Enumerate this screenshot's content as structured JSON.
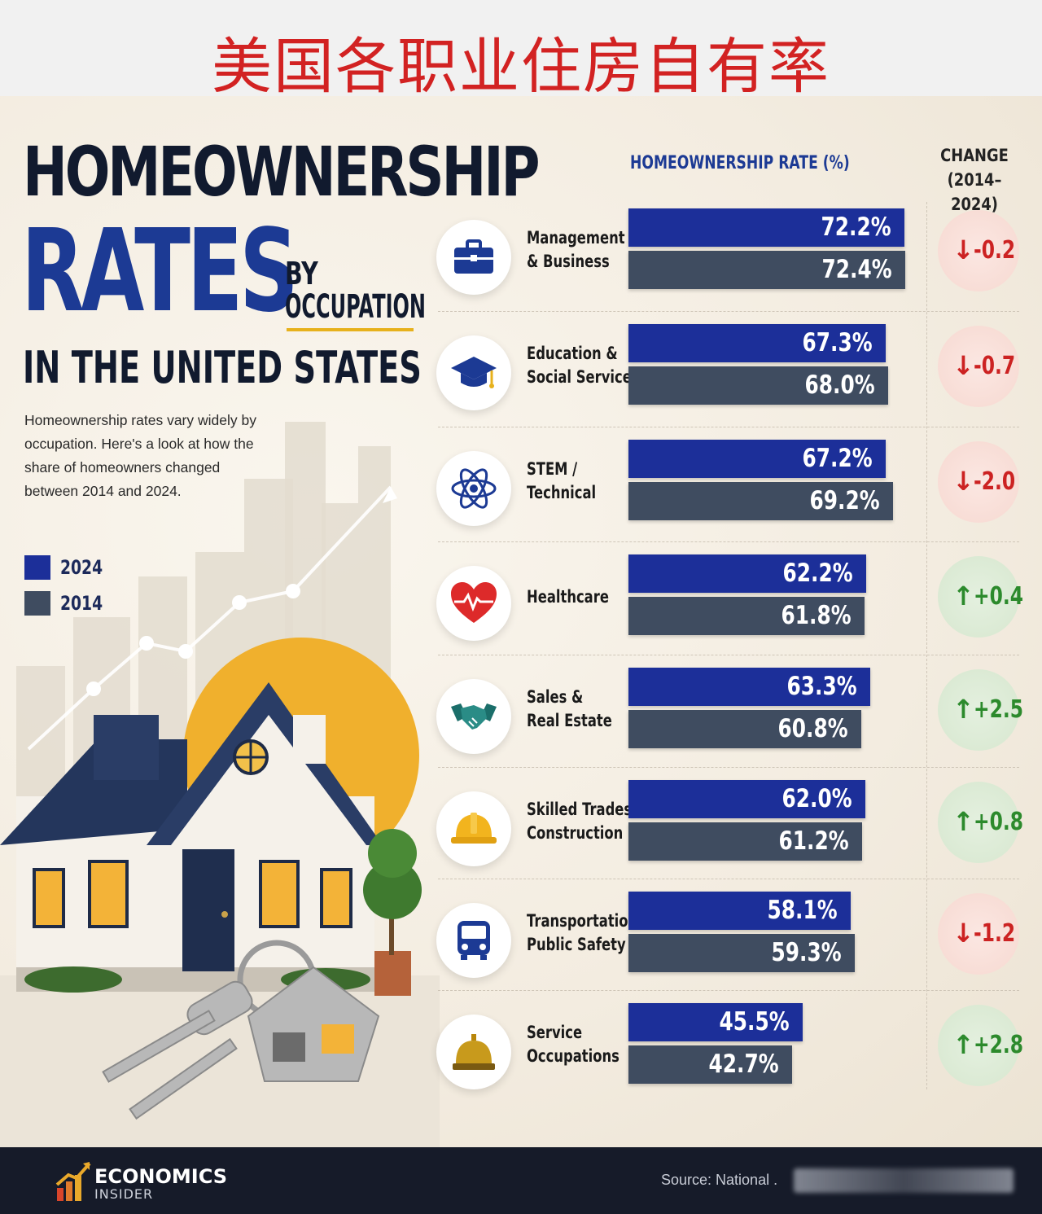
{
  "banner": {
    "title": "美国各职业住房自有率"
  },
  "header": {
    "line1": "HOMEOWNERSHIP",
    "line2": "RATES",
    "by": "BY",
    "occupation": "OCCUPATION",
    "line3": "IN THE UNITED STATES"
  },
  "intro": "Homeownership rates vary widely by occupation. Here's a look at how the share of homeowners changed between 2014 and 2024.",
  "legend": [
    {
      "label": "2024",
      "color": "#1c2f99"
    },
    {
      "label": "2014",
      "color": "#3f4c60"
    }
  ],
  "columns": {
    "rate": "HOMEOWNERSHIP RATE (%)",
    "change_line1": "CHANGE",
    "change_line2": "(2014–2024)"
  },
  "chart_data": {
    "type": "bar",
    "title": "HOMEOWNERSHIP RATES BY OCCUPATION IN THE UNITED STATES",
    "ylabel": "HOMEOWNERSHIP RATE (%)",
    "categories": [
      "Management & Business",
      "Education & Social Services",
      "STEM / Technical",
      "Healthcare",
      "Sales & Real Estate",
      "Skilled Trades & Construction",
      "Transportation & Public Safety",
      "Service Occupations"
    ],
    "series": [
      {
        "name": "2024",
        "color": "#1c2f99",
        "values": [
          72.2,
          67.3,
          67.2,
          62.2,
          63.3,
          62.0,
          58.1,
          45.5
        ]
      },
      {
        "name": "2014",
        "color": "#3f4c60",
        "values": [
          72.4,
          68.0,
          69.2,
          61.8,
          60.8,
          61.2,
          59.3,
          42.7
        ]
      }
    ],
    "change": [
      -0.2,
      -0.7,
      -2.0,
      0.4,
      2.5,
      0.8,
      -1.2,
      2.8
    ],
    "xlim": [
      0,
      100
    ]
  },
  "rows": [
    {
      "line1": "Management",
      "line2": "& Business",
      "v2024": "72.2%",
      "v2014": "72.4%",
      "change": "-0.2",
      "dir": "neg",
      "icon": "briefcase-icon"
    },
    {
      "line1": "Education &",
      "line2": "Social Services",
      "v2024": "67.3%",
      "v2014": "68.0%",
      "change": "-0.7",
      "dir": "neg",
      "icon": "graduation-cap-icon"
    },
    {
      "line1": "STEM /",
      "line2": "Technical",
      "v2024": "67.2%",
      "v2014": "69.2%",
      "change": "-2.0",
      "dir": "neg",
      "icon": "atom-icon"
    },
    {
      "line1": "Healthcare",
      "line2": "",
      "v2024": "62.2%",
      "v2014": "61.8%",
      "change": "+0.4",
      "dir": "pos",
      "icon": "heart-pulse-icon"
    },
    {
      "line1": "Sales &",
      "line2": "Real Estate",
      "v2024": "63.3%",
      "v2014": "60.8%",
      "change": "+2.5",
      "dir": "pos",
      "icon": "handshake-icon"
    },
    {
      "line1": "Skilled Trades &",
      "line2": "Construction",
      "v2024": "62.0%",
      "v2014": "61.2%",
      "change": "+0.8",
      "dir": "pos",
      "icon": "hard-hat-icon"
    },
    {
      "line1": "Transportation &",
      "line2": "Public Safety",
      "v2024": "58.1%",
      "v2014": "59.3%",
      "change": "-1.2",
      "dir": "neg",
      "icon": "bus-icon"
    },
    {
      "line1": "Service",
      "line2": "Occupations",
      "v2024": "45.5%",
      "v2014": "42.7%",
      "change": "+2.8",
      "dir": "pos",
      "icon": "service-bell-icon"
    }
  ],
  "arrows": {
    "down": "↓",
    "up": "↑"
  },
  "footer": {
    "brand_name": "ECONOMICS",
    "brand_sub": "INSIDER",
    "source": "Source:   National ."
  },
  "colors": {
    "brand_blue": "#1c3a94",
    "accent_yellow": "#e7b11c",
    "negative": "#cc2222",
    "positive": "#2c8a2c"
  }
}
